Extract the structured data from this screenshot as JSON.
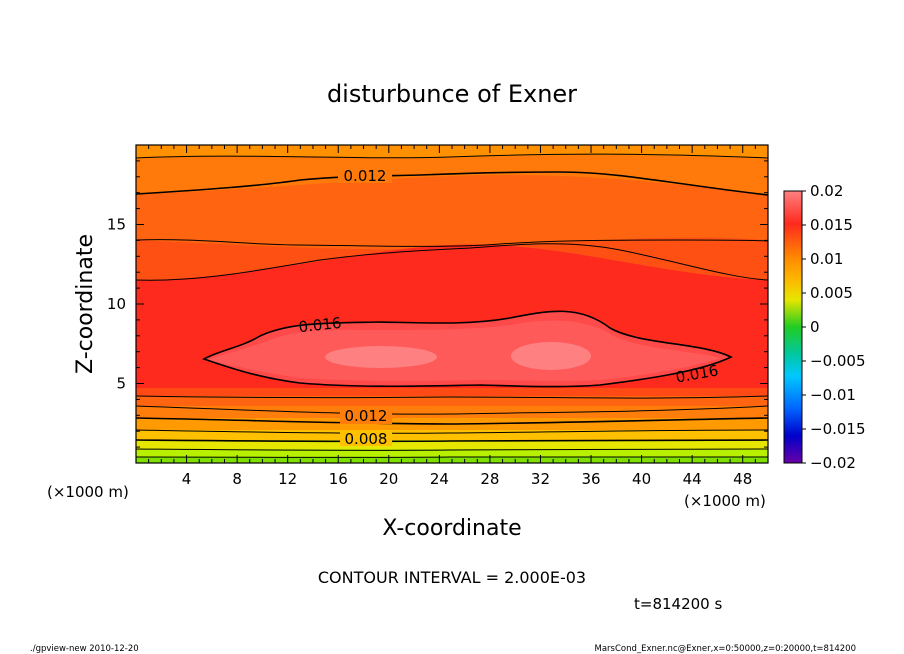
{
  "chart_data": {
    "type": "heatmap",
    "title": "disturbunce of Exner",
    "xlabel": "X-coordinate",
    "ylabel": "Z-coordinate",
    "x_unit": "(×1000 m)",
    "y_unit": "(×1000 m)",
    "xlim": [
      0,
      50
    ],
    "ylim": [
      0,
      20
    ],
    "x_ticks": [
      "4",
      "8",
      "12",
      "16",
      "20",
      "24",
      "28",
      "32",
      "36",
      "40",
      "44",
      "48"
    ],
    "y_ticks": [
      "5",
      "10",
      "15"
    ],
    "colorbar": {
      "range": [
        -0.02,
        0.02
      ],
      "tick_labels": [
        "0.02",
        "0.015",
        "0.01",
        "0.005",
        "0",
        "−0.005",
        "−0.01",
        "−0.015",
        "−0.02"
      ]
    },
    "contour_labels": [
      "0.012",
      "0.016",
      "0.016",
      "0.012",
      "0.008"
    ],
    "contour_interval_text": "CONTOUR INTERVAL = 2.000E-03",
    "time_text": "t=814200 s"
  },
  "footer": {
    "left": "./gpview-new  2010-12-20",
    "right": "MarsCond_Exner.nc@Exner,x=0:50000,z=0:20000,t=814200"
  },
  "colors": {
    "levels": [
      "#ff7878",
      "#ff2a1e",
      "#ff5a14",
      "#ff7d0a",
      "#ff9a00",
      "#ffc000",
      "#e6e600",
      "#b9ef00",
      "#7fe000",
      "#22cc22",
      "#00c8a0",
      "#00c8ff",
      "#0064ff",
      "#0000c8",
      "#6a00a8"
    ]
  }
}
